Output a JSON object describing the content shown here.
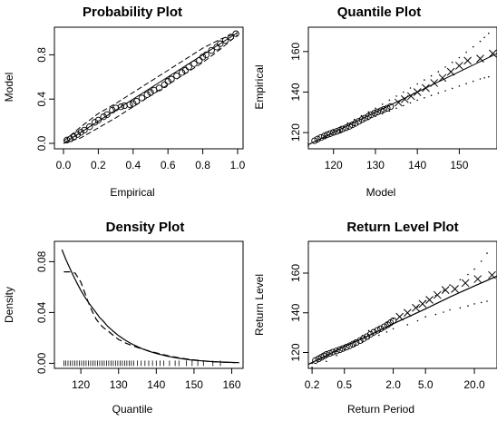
{
  "figure": {
    "background": "#ffffff",
    "ink": "#000000"
  },
  "chart_data": [
    {
      "type": "scatter",
      "title": "Probability Plot",
      "xlabel": "Empirical",
      "ylabel": "Model",
      "xlim": [
        0,
        1
      ],
      "ylim": [
        0,
        1
      ],
      "x_ticks": [
        "0.0",
        "0.2",
        "0.4",
        "0.6",
        "0.8",
        "1.0"
      ],
      "y_ticks": [
        "0.0",
        "0.4",
        "0.8"
      ],
      "grid": false,
      "marker": "o",
      "n_points": 40,
      "points": [
        [
          0.02,
          0.03
        ],
        [
          0.04,
          0.04
        ],
        [
          0.06,
          0.06
        ],
        [
          0.08,
          0.08
        ],
        [
          0.1,
          0.1
        ],
        [
          0.12,
          0.12
        ],
        [
          0.15,
          0.15
        ],
        [
          0.18,
          0.19
        ],
        [
          0.2,
          0.21
        ],
        [
          0.23,
          0.24
        ],
        [
          0.25,
          0.26
        ],
        [
          0.28,
          0.3
        ],
        [
          0.3,
          0.32
        ],
        [
          0.33,
          0.33
        ],
        [
          0.35,
          0.34
        ],
        [
          0.38,
          0.35
        ],
        [
          0.4,
          0.36
        ],
        [
          0.42,
          0.38
        ],
        [
          0.45,
          0.41
        ],
        [
          0.48,
          0.44
        ],
        [
          0.5,
          0.46
        ],
        [
          0.52,
          0.48
        ],
        [
          0.55,
          0.5
        ],
        [
          0.58,
          0.53
        ],
        [
          0.6,
          0.56
        ],
        [
          0.62,
          0.58
        ],
        [
          0.65,
          0.61
        ],
        [
          0.68,
          0.64
        ],
        [
          0.7,
          0.66
        ],
        [
          0.72,
          0.69
        ],
        [
          0.75,
          0.72
        ],
        [
          0.78,
          0.75
        ],
        [
          0.8,
          0.78
        ],
        [
          0.82,
          0.8
        ],
        [
          0.85,
          0.84
        ],
        [
          0.88,
          0.87
        ],
        [
          0.9,
          0.9
        ],
        [
          0.93,
          0.93
        ],
        [
          0.96,
          0.96
        ],
        [
          0.99,
          0.99
        ]
      ],
      "reference_line": [
        [
          0,
          0
        ],
        [
          1,
          1
        ]
      ],
      "upper_band": [
        [
          0.0,
          0.02
        ],
        [
          0.1,
          0.15
        ],
        [
          0.2,
          0.27
        ],
        [
          0.3,
          0.36
        ],
        [
          0.4,
          0.46
        ],
        [
          0.5,
          0.56
        ],
        [
          0.6,
          0.66
        ],
        [
          0.7,
          0.76
        ],
        [
          0.8,
          0.86
        ],
        [
          0.9,
          0.94
        ],
        [
          1.0,
          1.0
        ]
      ],
      "lower_band": [
        [
          0.0,
          0.0
        ],
        [
          0.1,
          0.05
        ],
        [
          0.2,
          0.14
        ],
        [
          0.3,
          0.23
        ],
        [
          0.4,
          0.33
        ],
        [
          0.5,
          0.43
        ],
        [
          0.6,
          0.53
        ],
        [
          0.7,
          0.63
        ],
        [
          0.8,
          0.73
        ],
        [
          0.9,
          0.85
        ],
        [
          1.0,
          0.98
        ]
      ]
    },
    {
      "type": "scatter",
      "title": "Quantile Plot",
      "xlabel": "Model",
      "ylabel": "Empirical",
      "xlim": [
        114,
        159
      ],
      "ylim": [
        112,
        172
      ],
      "x_ticks": [
        "120",
        "130",
        "140",
        "150"
      ],
      "y_ticks": [
        "120",
        "140",
        "160"
      ],
      "grid": false,
      "marker": "o / x",
      "points": [
        [
          115.5,
          116
        ],
        [
          116.2,
          116.8
        ],
        [
          117,
          117.6
        ],
        [
          117.8,
          118.3
        ],
        [
          118.5,
          119
        ],
        [
          119.2,
          119.5
        ],
        [
          120,
          120.1
        ],
        [
          120.8,
          120.6
        ],
        [
          121.5,
          121.2
        ],
        [
          122.2,
          121.8
        ],
        [
          123,
          122.4
        ],
        [
          123.8,
          123.1
        ],
        [
          124.5,
          123.8
        ],
        [
          125.2,
          124.6
        ],
        [
          126,
          125.5
        ],
        [
          126.8,
          126.4
        ],
        [
          127.5,
          127.2
        ],
        [
          128.3,
          128
        ],
        [
          129,
          128.8
        ],
        [
          129.8,
          129.6
        ],
        [
          130.5,
          130.2
        ],
        [
          131.3,
          130.8
        ],
        [
          132,
          131.4
        ],
        [
          132.8,
          132
        ],
        [
          133.6,
          132.8
        ]
      ],
      "tail_points": [
        [
          135.5,
          134.8
        ],
        [
          137,
          136.5
        ],
        [
          138.5,
          138
        ],
        [
          140,
          140
        ],
        [
          142,
          142
        ],
        [
          144,
          144.5
        ],
        [
          146,
          147
        ],
        [
          148,
          150
        ],
        [
          150,
          153
        ],
        [
          152,
          155.5
        ],
        [
          155,
          156.5
        ],
        [
          158,
          159
        ]
      ],
      "reference_line": [
        [
          114,
          114
        ],
        [
          159,
          159
        ]
      ],
      "upper_band": [
        [
          114,
          113.5
        ],
        [
          120,
          121
        ],
        [
          125,
          126.5
        ],
        [
          130,
          132
        ],
        [
          135,
          138
        ],
        [
          140,
          144
        ],
        [
          145,
          150
        ],
        [
          150,
          157
        ],
        [
          155,
          165
        ],
        [
          158,
          171
        ]
      ],
      "lower_band": [
        [
          114,
          114.5
        ],
        [
          120,
          118.8
        ],
        [
          125,
          123.5
        ],
        [
          130,
          128
        ],
        [
          135,
          132
        ],
        [
          140,
          136
        ],
        [
          145,
          139.5
        ],
        [
          150,
          143
        ],
        [
          155,
          146.5
        ],
        [
          158,
          148
        ]
      ]
    },
    {
      "type": "line",
      "title": "Density Plot",
      "xlabel": "Quantile",
      "ylabel": "Density",
      "xlim": [
        113,
        163
      ],
      "ylim": [
        -0.004,
        0.096
      ],
      "x_ticks": [
        "120",
        "130",
        "140",
        "150",
        "160"
      ],
      "y_ticks": [
        "0.00",
        "0.04",
        "0.08"
      ],
      "grid": false,
      "series": [
        {
          "style": "solid",
          "x": [
            115,
            116,
            117,
            118,
            119,
            120,
            121,
            122,
            123,
            124,
            125,
            126,
            127,
            128,
            129,
            130,
            132,
            134,
            136,
            138,
            140,
            143,
            146,
            149,
            152,
            155,
            158,
            162
          ],
          "y": [
            0.0895,
            0.082,
            0.0755,
            0.069,
            0.063,
            0.0575,
            0.0525,
            0.048,
            0.044,
            0.04,
            0.036,
            0.033,
            0.0295,
            0.0268,
            0.0242,
            0.0218,
            0.0178,
            0.0145,
            0.0118,
            0.0095,
            0.0077,
            0.0055,
            0.0039,
            0.0027,
            0.0019,
            0.0013,
            0.0009,
            0.0005
          ]
        },
        {
          "style": "dashed",
          "x": [
            115.5,
            117,
            118.5,
            120,
            121,
            122,
            123,
            124,
            125,
            126,
            127,
            128,
            129,
            130,
            131,
            132,
            134,
            136,
            138,
            140,
            143,
            146,
            149,
            152,
            155,
            158,
            161
          ],
          "y": [
            0.072,
            0.072,
            0.071,
            0.064,
            0.056,
            0.048,
            0.041,
            0.035,
            0.031,
            0.028,
            0.026,
            0.0235,
            0.021,
            0.0188,
            0.0172,
            0.0158,
            0.0135,
            0.0115,
            0.0098,
            0.0082,
            0.006,
            0.0043,
            0.003,
            0.002,
            0.0013,
            0.0008,
            0.0005
          ]
        }
      ],
      "rug": [
        115.5,
        116,
        116.6,
        117.2,
        117.8,
        118.4,
        119,
        119.6,
        120.2,
        120.8,
        121.4,
        122,
        122.6,
        123.2,
        123.8,
        124.4,
        125,
        125.6,
        126.2,
        126.8,
        127.4,
        128,
        128.6,
        129.2,
        129.8,
        130.4,
        131,
        131.6,
        132.2,
        132.8,
        133.4,
        134,
        135,
        136,
        137,
        138,
        139,
        140,
        141,
        142,
        143.5,
        145,
        146,
        148,
        149.5,
        151,
        152.5,
        155,
        157
      ]
    },
    {
      "type": "scatter",
      "title": "Return Level Plot",
      "xlabel": "Return Period",
      "ylabel": "Return Level",
      "x_scale": "log",
      "xlim": [
        0.18,
        38
      ],
      "ylim": [
        112,
        176
      ],
      "x_ticks": [
        "0.2",
        "0.5",
        "2.0",
        "5.0",
        "20.0"
      ],
      "y_ticks": [
        "120",
        "140",
        "160"
      ],
      "grid": false,
      "marker": "o / x",
      "points": [
        [
          0.22,
          116
        ],
        [
          0.24,
          116.8
        ],
        [
          0.26,
          117.6
        ],
        [
          0.28,
          118.3
        ],
        [
          0.3,
          119
        ],
        [
          0.33,
          119.6
        ],
        [
          0.36,
          120.2
        ],
        [
          0.4,
          120.8
        ],
        [
          0.44,
          121.4
        ],
        [
          0.48,
          122
        ],
        [
          0.53,
          122.7
        ],
        [
          0.58,
          123.4
        ],
        [
          0.64,
          124.2
        ],
        [
          0.7,
          125
        ],
        [
          0.78,
          126
        ],
        [
          0.86,
          127
        ],
        [
          0.95,
          128
        ],
        [
          1.05,
          129.2
        ],
        [
          1.15,
          130.2
        ],
        [
          1.28,
          131.2
        ],
        [
          1.4,
          132
        ],
        [
          1.55,
          133
        ],
        [
          1.7,
          134
        ],
        [
          1.85,
          135
        ],
        [
          2.0,
          136
        ]
      ],
      "tail_points": [
        [
          2.4,
          138
        ],
        [
          3.0,
          140
        ],
        [
          3.8,
          142.5
        ],
        [
          4.6,
          144.5
        ],
        [
          5.6,
          146.5
        ],
        [
          7.0,
          149
        ],
        [
          8.8,
          151.5
        ],
        [
          11.5,
          152
        ],
        [
          15.5,
          155
        ],
        [
          22,
          157
        ],
        [
          33,
          159
        ]
      ],
      "fit_line": [
        [
          0.18,
          114
        ],
        [
          0.3,
          118.5
        ],
        [
          0.5,
          123
        ],
        [
          1.0,
          128.5
        ],
        [
          2.0,
          134.5
        ],
        [
          5.0,
          142
        ],
        [
          10,
          148
        ],
        [
          20,
          153.5
        ],
        [
          38,
          158.5
        ]
      ],
      "upper_band": [
        [
          0.2,
          114.5
        ],
        [
          0.5,
          123.5
        ],
        [
          1.0,
          131
        ],
        [
          2.0,
          137
        ],
        [
          5.0,
          146
        ],
        [
          10,
          154
        ],
        [
          20,
          162
        ],
        [
          33,
          174
        ]
      ],
      "lower_band": [
        [
          0.2,
          112.5
        ],
        [
          0.5,
          121.5
        ],
        [
          1.0,
          127
        ],
        [
          2.0,
          132
        ],
        [
          5.0,
          138
        ],
        [
          10,
          141.5
        ],
        [
          20,
          144.5
        ],
        [
          33,
          146.5
        ]
      ]
    }
  ]
}
